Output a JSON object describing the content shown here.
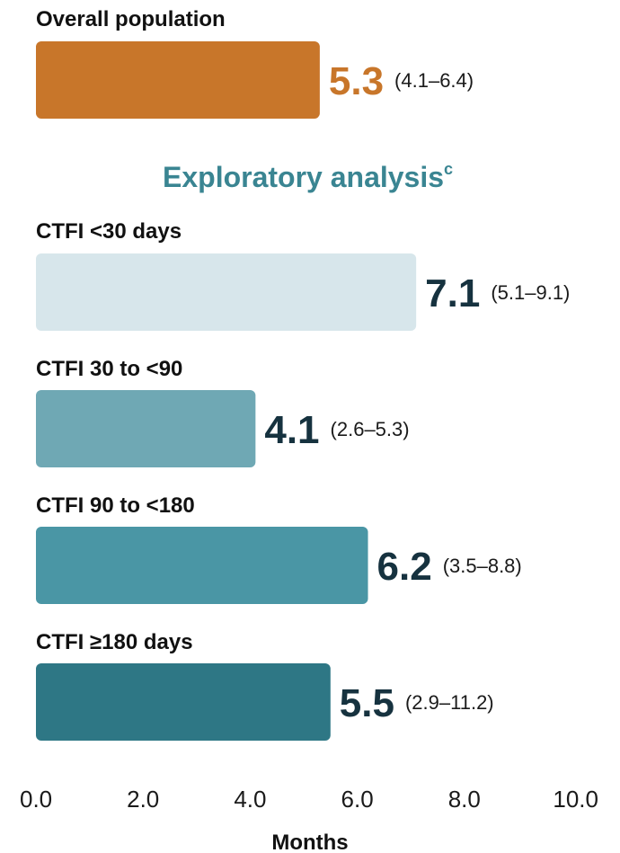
{
  "chart_data": {
    "type": "bar",
    "orientation": "horizontal",
    "xlabel": "Months",
    "xlim": [
      0,
      10
    ],
    "xticks": [
      "0.0",
      "2.0",
      "4.0",
      "6.0",
      "8.0",
      "10.0"
    ],
    "section_title": "Exploratory analysis",
    "section_title_superscript": "c",
    "grid": false,
    "categories": [
      "Overall population",
      "CTFI <30 days",
      "CTFI 30 to <90",
      "CTFI 90 to <180",
      "CTFI ≥180 days"
    ],
    "values": [
      5.3,
      7.1,
      4.1,
      6.2,
      5.5
    ],
    "value_labels": [
      "5.3",
      "7.1",
      "4.1",
      "6.2",
      "5.5"
    ],
    "ci_labels": [
      "(4.1–6.4)",
      "(5.1–9.1)",
      "(2.6–5.3)",
      "(3.5–8.8)",
      "(2.9–11.2)"
    ],
    "bar_colors": [
      "#C8762A",
      "#D7E6EB",
      "#6FA8B4",
      "#4A96A5",
      "#2E7785"
    ],
    "value_colors": [
      "#C8762A",
      "#16323F",
      "#16323F",
      "#16323F",
      "#16323F"
    ],
    "section_title_color": "#3A8592"
  }
}
